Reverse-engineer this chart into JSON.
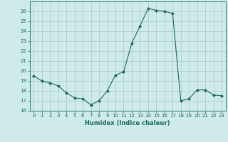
{
  "x": [
    0,
    1,
    2,
    3,
    4,
    5,
    6,
    7,
    8,
    9,
    10,
    11,
    12,
    13,
    14,
    15,
    16,
    17,
    18,
    19,
    20,
    21,
    22,
    23
  ],
  "y": [
    19.5,
    19.0,
    18.8,
    18.5,
    17.8,
    17.3,
    17.2,
    16.6,
    17.0,
    18.0,
    19.6,
    19.9,
    22.8,
    24.5,
    26.3,
    26.1,
    26.0,
    25.8,
    17.0,
    17.2,
    18.1,
    18.1,
    17.6,
    17.5
  ],
  "line_color": "#1a6b5a",
  "marker": "D",
  "marker_size": 2.0,
  "bg_color": "#ceeaea",
  "grid_color": "#aac8c8",
  "xlabel": "Humidex (Indice chaleur)",
  "xlim": [
    -0.5,
    23.5
  ],
  "ylim": [
    16,
    27
  ],
  "yticks": [
    16,
    17,
    18,
    19,
    20,
    21,
    22,
    23,
    24,
    25,
    26
  ],
  "xticks": [
    0,
    1,
    2,
    3,
    4,
    5,
    6,
    7,
    8,
    9,
    10,
    11,
    12,
    13,
    14,
    15,
    16,
    17,
    18,
    19,
    20,
    21,
    22,
    23
  ],
  "xtick_labels": [
    "0",
    "1",
    "2",
    "3",
    "4",
    "5",
    "6",
    "7",
    "8",
    "9",
    "10",
    "11",
    "12",
    "13",
    "14",
    "15",
    "16",
    "17",
    "18",
    "19",
    "20",
    "21",
    "22",
    "23"
  ],
  "tick_color": "#1a6b5a",
  "axis_color": "#1a6b5a",
  "tick_fontsize": 5.0,
  "xlabel_fontsize": 6.0
}
